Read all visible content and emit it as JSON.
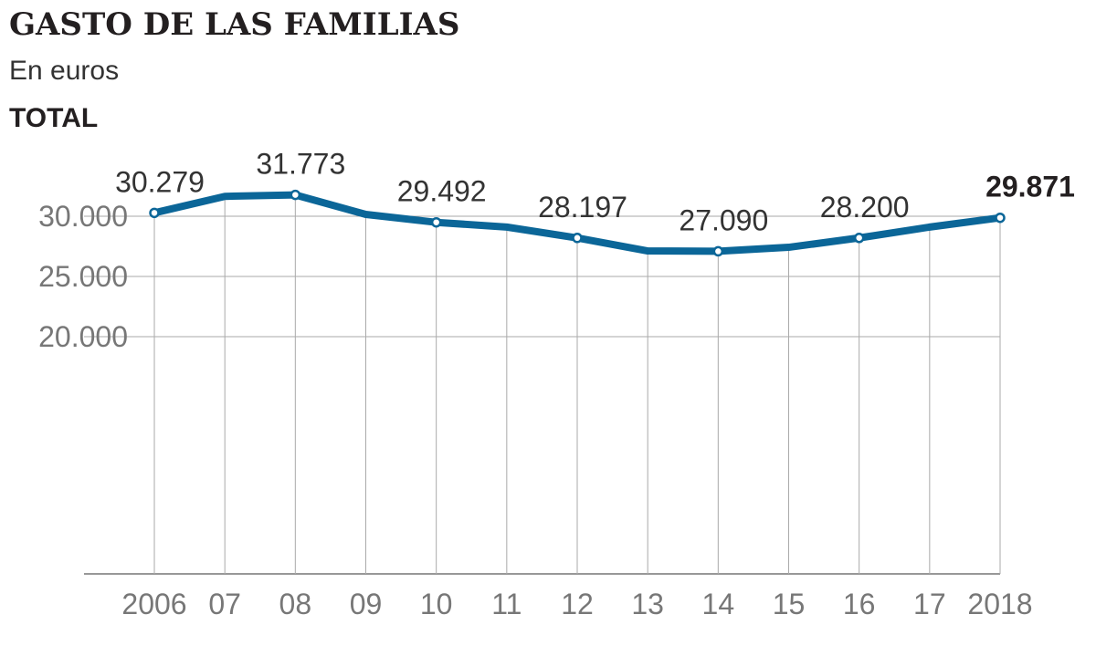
{
  "chart_data": {
    "type": "line",
    "title": "GASTO DE LAS FAMILIAS",
    "subtitle": "En euros",
    "section": "TOTAL",
    "categories": [
      "2006",
      "07",
      "08",
      "09",
      "10",
      "11",
      "12",
      "13",
      "14",
      "15",
      "16",
      "17",
      "2018"
    ],
    "values": [
      30279,
      31650,
      31773,
      30150,
      29492,
      29100,
      28197,
      27120,
      27090,
      27420,
      28200,
      29100,
      29871
    ],
    "data_labels": [
      "30.279",
      null,
      "31.773",
      null,
      "29.492",
      null,
      "28.197",
      null,
      "27.090",
      null,
      "28.200",
      null,
      "29.871"
    ],
    "highlight_last": true,
    "yticks": [
      {
        "value": 30000,
        "label": "30.000"
      },
      {
        "value": 25000,
        "label": "25.000"
      },
      {
        "value": 20000,
        "label": "20.000"
      }
    ],
    "ylim": [
      0,
      32000
    ],
    "grid": "horizontal at ticks, vertical at each year",
    "line_color": "#0b6698",
    "xlabel": "",
    "ylabel": ""
  }
}
